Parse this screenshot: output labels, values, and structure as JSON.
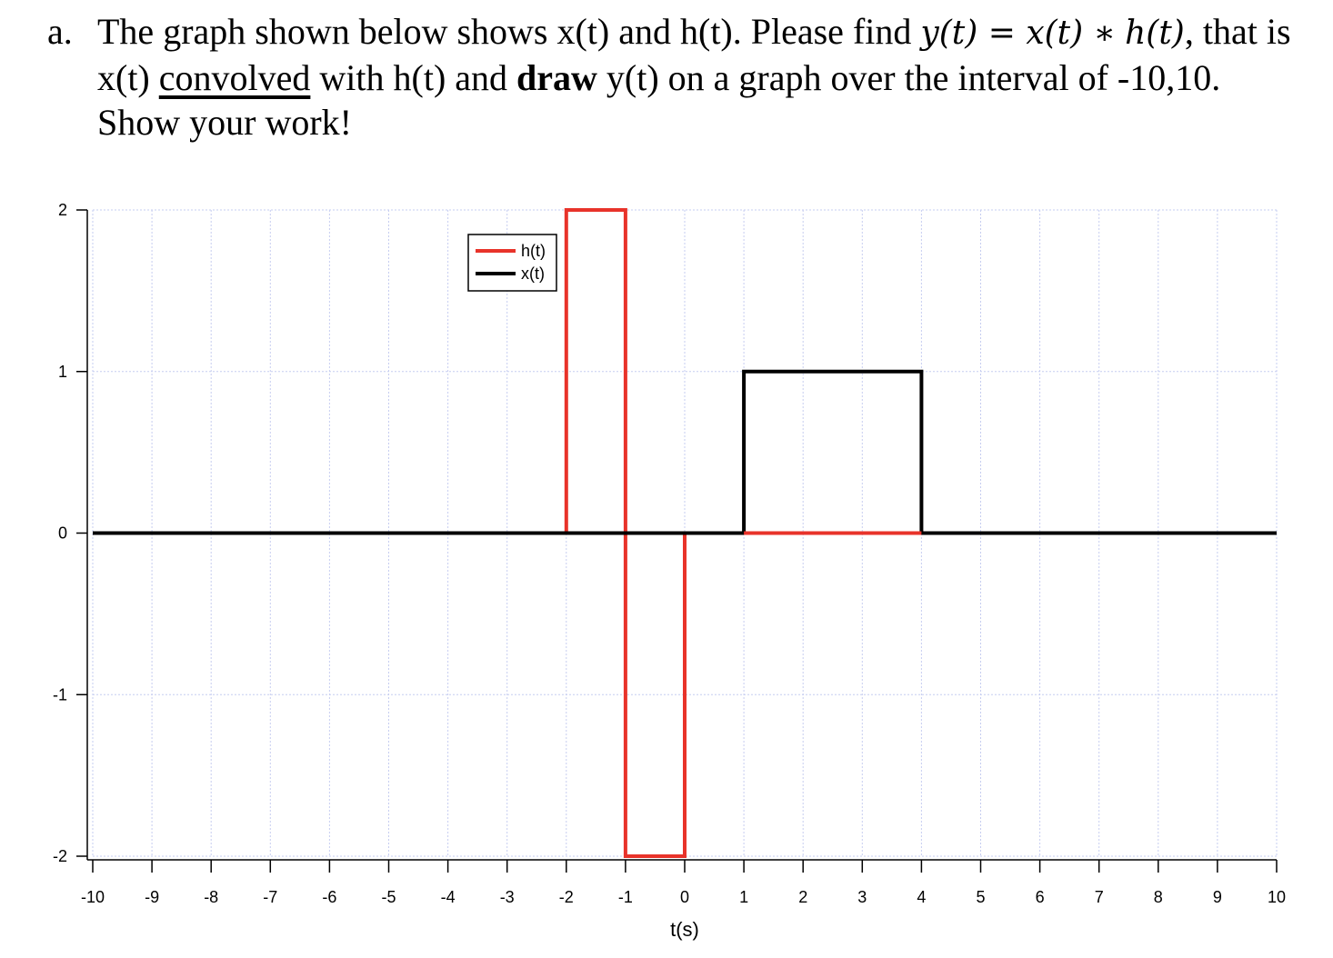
{
  "problem": {
    "marker": "a.",
    "part1": "The graph shown below shows x(t) and h(t). Please find ",
    "eq_y": "y(t) =",
    "eq_x": " x(t) ∗",
    "eq_h": "h(t)",
    "part2": ", that is x(t) ",
    "underlined": "convolved",
    "part3": " with h(t) and ",
    "bold": "draw",
    "part4": " y(t) on a graph over the interval of -10,10. Show your work!"
  },
  "chart_data": {
    "type": "line",
    "xlabel": "t(s)",
    "ylabel": "",
    "xlim": [
      -10,
      10
    ],
    "ylim": [
      -2,
      2
    ],
    "xticks": [
      -10,
      -9,
      -8,
      -7,
      -6,
      -5,
      -4,
      -3,
      -2,
      -1,
      0,
      1,
      2,
      3,
      4,
      5,
      6,
      7,
      8,
      9,
      10
    ],
    "yticks": [
      -2,
      -1,
      0,
      1,
      2
    ],
    "grid": true,
    "legend_position": "top-center",
    "series": [
      {
        "name": "h(t)",
        "color": "#e8332a",
        "x": [
          -10,
          -2,
          -2,
          -1,
          -1,
          0,
          0,
          10
        ],
        "y": [
          0,
          0,
          2,
          2,
          -2,
          -2,
          0,
          0
        ]
      },
      {
        "name": "x(t)",
        "color": "#000000",
        "x": [
          -10,
          1,
          1,
          4,
          4,
          10
        ],
        "y": [
          0,
          0,
          1,
          1,
          0,
          0
        ]
      }
    ]
  }
}
